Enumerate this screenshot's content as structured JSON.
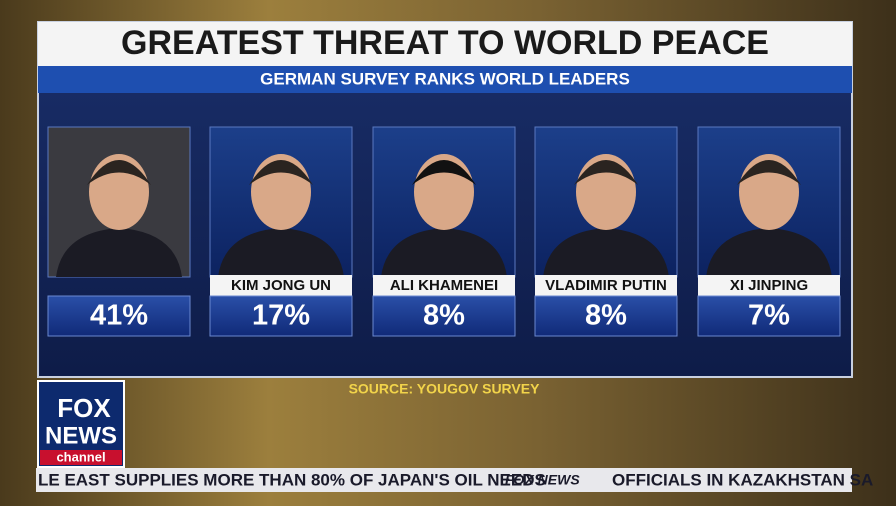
{
  "header": {
    "title": "GREATEST THREAT TO WORLD PEACE",
    "subtitle": "GERMAN SURVEY RANKS WORLD LEADERS"
  },
  "panels": [
    {
      "percent": "41%"
    },
    {
      "name": "KIM JONG UN",
      "percent": "17%"
    },
    {
      "name": "ALI KHAMENEI",
      "percent": "8%"
    },
    {
      "name": "VLADIMIR PUTIN",
      "percent": "8%"
    },
    {
      "name": "XI JINPING",
      "percent": "7%"
    }
  ],
  "source": "SOURCE: YOUGOV SURVEY",
  "logo": {
    "line1": "FOX",
    "line2": "NEWS",
    "line3": "channel"
  },
  "ticker": {
    "left": "LE EAST SUPPLIES MORE THAN 80% OF JAPAN'S OIL NEEDS",
    "brand": "FOX NEWS",
    "right": "OFFICIALS IN KAZAKHSTAN SA"
  }
}
